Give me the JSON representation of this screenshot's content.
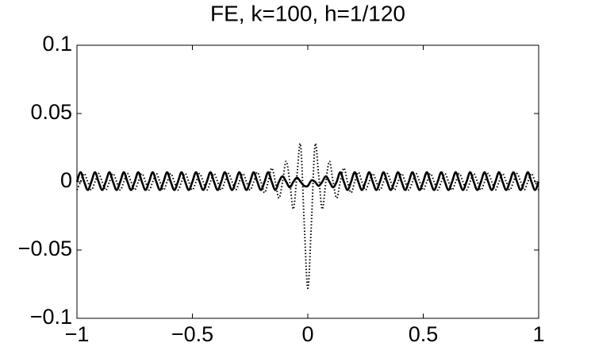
{
  "chart_data": {
    "type": "line",
    "title": "FE, k=100, h=1/120",
    "x": [
      -1,
      -0.984375,
      -0.96875,
      -0.953125,
      -0.9375,
      -0.921875,
      -0.90625,
      -0.890625,
      -0.875,
      -0.859375,
      -0.84375,
      -0.828125,
      -0.8125,
      -0.796875,
      -0.78125,
      -0.765625,
      -0.75,
      -0.734375,
      -0.71875,
      -0.703125,
      -0.6875,
      -0.671875,
      -0.65625,
      -0.640625,
      -0.625,
      -0.609375,
      -0.59375,
      -0.578125,
      -0.5625,
      -0.546875,
      -0.53125,
      -0.515625,
      -0.5,
      -0.484375,
      -0.46875,
      -0.453125,
      -0.4375,
      -0.421875,
      -0.40625,
      -0.390625,
      -0.375,
      -0.359375,
      -0.34375,
      -0.328125,
      -0.3125,
      -0.296875,
      -0.28125,
      -0.265625,
      -0.25,
      -0.234375,
      -0.21875,
      -0.203125,
      -0.1875,
      -0.171875,
      -0.15625,
      -0.140625,
      -0.125,
      -0.109375,
      -0.09375,
      -0.078125,
      -0.0625,
      -0.046875,
      -0.03125,
      -0.015625,
      0,
      0.015625,
      0.03125,
      0.046875,
      0.0625,
      0.078125,
      0.09375,
      0.109375,
      0.125,
      0.140625,
      0.15625,
      0.171875,
      0.1875,
      0.203125,
      0.21875,
      0.234375,
      0.25,
      0.265625,
      0.28125,
      0.296875,
      0.3125,
      0.328125,
      0.34375,
      0.359375,
      0.375,
      0.390625,
      0.40625,
      0.421875,
      0.4375,
      0.453125,
      0.46875,
      0.484375,
      0.5,
      0.515625,
      0.53125,
      0.546875,
      0.5625,
      0.578125,
      0.59375,
      0.609375,
      0.625,
      0.640625,
      0.65625,
      0.671875,
      0.6875,
      0.703125,
      0.71875,
      0.734375,
      0.75,
      0.765625,
      0.78125,
      0.796875,
      0.8125,
      0.828125,
      0.84375,
      0.859375,
      0.875,
      0.890625,
      0.90625,
      0.921875,
      0.9375,
      0.953125,
      0.96875,
      0.984375,
      1
    ],
    "series": [
      {
        "color": "#000000",
        "style": "solid",
        "values": [
          0,
          0.007,
          0,
          -0.006,
          0,
          0.007,
          0,
          -0.006,
          0,
          0.007,
          0,
          -0.006,
          0,
          0.007,
          0,
          -0.006,
          0,
          0.007,
          0,
          -0.006,
          0,
          0.007,
          0,
          -0.006,
          0,
          0.007,
          0,
          -0.006,
          0,
          0.007,
          0,
          -0.006,
          0,
          0.007,
          0,
          -0.006,
          0,
          0.007,
          0,
          -0.006,
          0,
          0.007,
          0,
          -0.006,
          0,
          0.007,
          0,
          -0.006,
          0,
          0.007,
          0,
          -0.006,
          0,
          0.007,
          0,
          -0.006,
          0,
          0.004,
          0,
          -0.004,
          0,
          0.003,
          0,
          -0.003,
          -0.003,
          0.001,
          0,
          -0.003,
          0,
          0.004,
          0,
          -0.004,
          0,
          0.007,
          0,
          -0.006,
          0,
          0.007,
          0,
          -0.006,
          0,
          0.007,
          0,
          -0.006,
          0,
          0.007,
          0,
          -0.006,
          0,
          0.007,
          0,
          -0.006,
          0,
          0.007,
          0,
          -0.006,
          0,
          0.007,
          0,
          -0.006,
          0,
          0.007,
          0,
          -0.006,
          0,
          0.007,
          0,
          -0.006,
          0,
          0.007,
          0,
          -0.006,
          0,
          0.007,
          0,
          -0.006,
          0,
          0.007,
          0,
          -0.006,
          0,
          0.007,
          0,
          -0.006,
          0,
          0.007,
          0,
          -0.006,
          0
        ]
      },
      {
        "color": "#000000",
        "style": "dotted",
        "values": [
          -0.006,
          0,
          0.006,
          0,
          -0.006,
          0,
          0.006,
          0,
          -0.006,
          0,
          0.006,
          0,
          -0.006,
          0,
          0.006,
          0,
          -0.006,
          0,
          0.006,
          0,
          -0.006,
          0,
          0.006,
          0,
          -0.006,
          0,
          0.006,
          0,
          -0.006,
          0,
          0.006,
          0,
          -0.006,
          0,
          0.006,
          0,
          -0.006,
          0,
          0.006,
          0,
          -0.006,
          0,
          0.006,
          0,
          -0.006,
          0,
          0.006,
          0,
          -0.006,
          0,
          0.007,
          0,
          -0.008,
          0,
          0.01,
          0,
          -0.012,
          0,
          0.015,
          0,
          -0.02,
          0.005,
          0.027,
          -0.03,
          -0.078,
          -0.03,
          0.027,
          0.005,
          -0.02,
          0,
          0.015,
          0,
          -0.012,
          0,
          0.01,
          0,
          -0.008,
          0,
          0.007,
          0,
          -0.006,
          0,
          0.006,
          0,
          -0.006,
          0,
          0.006,
          0,
          -0.006,
          0,
          0.006,
          0,
          -0.006,
          0,
          0.006,
          0,
          -0.006,
          0,
          0.006,
          0,
          -0.006,
          0,
          0.006,
          0,
          -0.006,
          0,
          0.006,
          0,
          -0.006,
          0,
          0.006,
          0,
          -0.006,
          0,
          0.006,
          0,
          -0.006,
          0,
          0.006,
          0,
          -0.006,
          0,
          0.006,
          0,
          -0.006,
          0,
          0.006,
          0,
          -0.006
        ]
      }
    ],
    "xlim": [
      -1,
      1
    ],
    "xticks": [
      {
        "value": -1,
        "label": "−1"
      },
      {
        "value": -0.5,
        "label": "−0.5"
      },
      0,
      0.5,
      1
    ],
    "ylim": [
      -0.1,
      0.1
    ],
    "yticks": [
      {
        "value": -0.1,
        "label": "−0.1"
      },
      {
        "value": -0.05,
        "label": "−0.05"
      },
      0,
      0.05,
      0.1
    ],
    "grid": false
  }
}
